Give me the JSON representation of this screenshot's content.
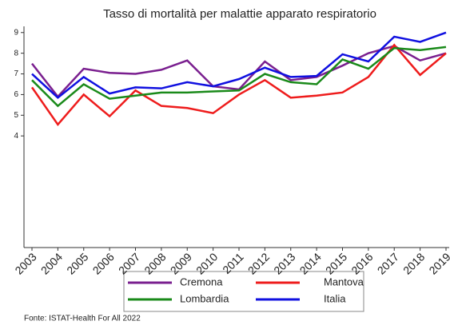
{
  "chart_data": {
    "type": "line",
    "title": "Tasso di mortalità per malattie apparato respiratorio",
    "categories": [
      "2003",
      "2004",
      "2005",
      "2006",
      "2007",
      "2008",
      "2009",
      "2010",
      "2011",
      "2012",
      "2013",
      "2014",
      "2015",
      "2016",
      "2017",
      "2018",
      "2019"
    ],
    "series": [
      {
        "name": "Cremona",
        "color": "#7a1f8f",
        "values": [
          7.5,
          5.9,
          7.25,
          7.05,
          7.0,
          7.2,
          7.65,
          6.4,
          6.25,
          7.6,
          6.7,
          6.85,
          7.4,
          8.0,
          8.35,
          7.65,
          8.0
        ]
      },
      {
        "name": "Mantova",
        "color": "#ee1c1c",
        "values": [
          6.35,
          4.55,
          6.0,
          4.95,
          6.2,
          5.45,
          5.35,
          5.1,
          6.0,
          6.7,
          5.85,
          5.95,
          6.1,
          6.85,
          8.4,
          6.95,
          8.0
        ]
      },
      {
        "name": "Lombardia",
        "color": "#1a8a1a",
        "values": [
          6.7,
          5.45,
          6.5,
          5.8,
          5.95,
          6.1,
          6.1,
          6.15,
          6.2,
          7.0,
          6.6,
          6.5,
          7.7,
          7.25,
          8.25,
          8.15,
          8.3
        ]
      },
      {
        "name": "Italia",
        "color": "#1010e0",
        "values": [
          7.0,
          5.85,
          6.85,
          6.05,
          6.35,
          6.3,
          6.6,
          6.4,
          6.75,
          7.3,
          6.85,
          6.9,
          7.95,
          7.6,
          8.8,
          8.55,
          9.0
        ]
      }
    ],
    "ylim": [
      -1.4,
      9.3
    ],
    "yticks": [
      4,
      5,
      6,
      7,
      8,
      9
    ],
    "source": "Fonte: ISTAT-Health For All 2022"
  }
}
